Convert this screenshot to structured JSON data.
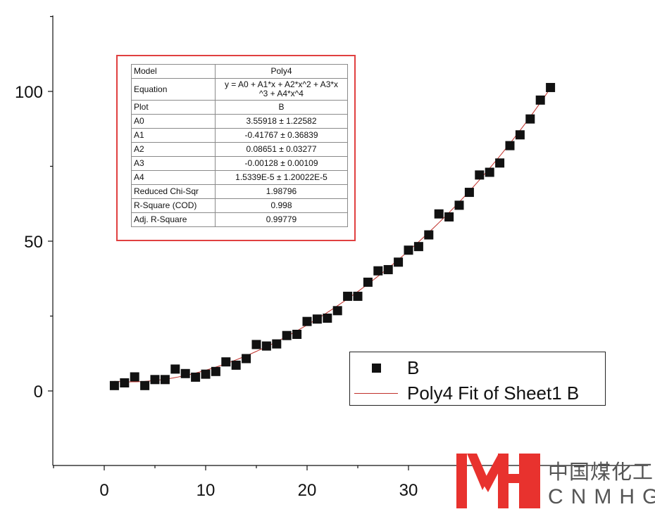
{
  "chart_data": {
    "type": "scatter",
    "xlim": [
      -5,
      45
    ],
    "ylim": [
      -25,
      125
    ],
    "x_ticks": [
      0,
      10,
      20,
      30
    ],
    "x_tick_labels": [
      "0",
      "10",
      "20",
      "30"
    ],
    "y_ticks": [
      0,
      50,
      100
    ],
    "y_tick_labels": [
      "0",
      "50",
      "100"
    ],
    "series": [
      {
        "name": "B",
        "kind": "scatter",
        "color": "#111111",
        "x": [
          1,
          2,
          3,
          4,
          5,
          6,
          7,
          8,
          9,
          10,
          11,
          12,
          13,
          14,
          15,
          16,
          17,
          18,
          19,
          20,
          21,
          22,
          23,
          24,
          25,
          26,
          27,
          28,
          29,
          30,
          31,
          32,
          33,
          34,
          35,
          36,
          37,
          38,
          39,
          40,
          41,
          42,
          43,
          44
        ],
        "y": [
          1.8,
          2.7,
          4.7,
          1.8,
          3.8,
          3.8,
          7.3,
          5.8,
          4.6,
          5.6,
          6.5,
          9.7,
          8.6,
          10.8,
          15.5,
          15.0,
          15.7,
          18.5,
          18.9,
          23.2,
          24.0,
          24.3,
          26.8,
          31.6,
          31.6,
          36.3,
          40.1,
          40.5,
          43.0,
          47.0,
          48.2,
          52.1,
          59.1,
          58.1,
          62.0,
          66.3,
          72.1,
          73.0,
          76.1,
          81.9,
          85.5,
          90.8,
          97.1,
          101.3
        ]
      },
      {
        "name": "Poly4 Fit of Sheet1 B",
        "kind": "fit_line",
        "color": "#c0312b",
        "coefficients": [
          3.55918,
          -0.41767,
          0.08651,
          -0.00128,
          1.5339e-05
        ],
        "x_range": [
          1,
          44
        ]
      }
    ],
    "legend_position": "bottom-right",
    "grid": false
  },
  "fit_table": {
    "rows": [
      {
        "key": "Model",
        "value": "Poly4"
      },
      {
        "key": "Equation",
        "value_line1": "y = A0 + A1*x + A2*x^2 + A3*x",
        "value_line2": "^3 + A4*x^4"
      },
      {
        "key": "Plot",
        "value": "B"
      },
      {
        "key": "A0",
        "value": "3.55918 ± 1.22582"
      },
      {
        "key": "A1",
        "value": "-0.41767 ± 0.36839"
      },
      {
        "key": "A2",
        "value": "0.08651 ± 0.03277"
      },
      {
        "key": "A3",
        "value": "-0.00128 ± 0.00109"
      },
      {
        "key": "A4",
        "value": "1.5339E-5 ± 1.20022E-5"
      },
      {
        "key": "Reduced Chi-Sqr",
        "value": "1.98796"
      },
      {
        "key": "R-Square (COD)",
        "value": "0.998"
      },
      {
        "key": "Adj. R-Square",
        "value": "0.99779"
      }
    ]
  },
  "legend": {
    "items": [
      {
        "label": "B"
      },
      {
        "label": "Poly4 Fit of Sheet1 B"
      }
    ]
  },
  "watermark": {
    "cn_text": "中国煤化工",
    "en_text": "CNMHG",
    "color": "#e8322e"
  }
}
